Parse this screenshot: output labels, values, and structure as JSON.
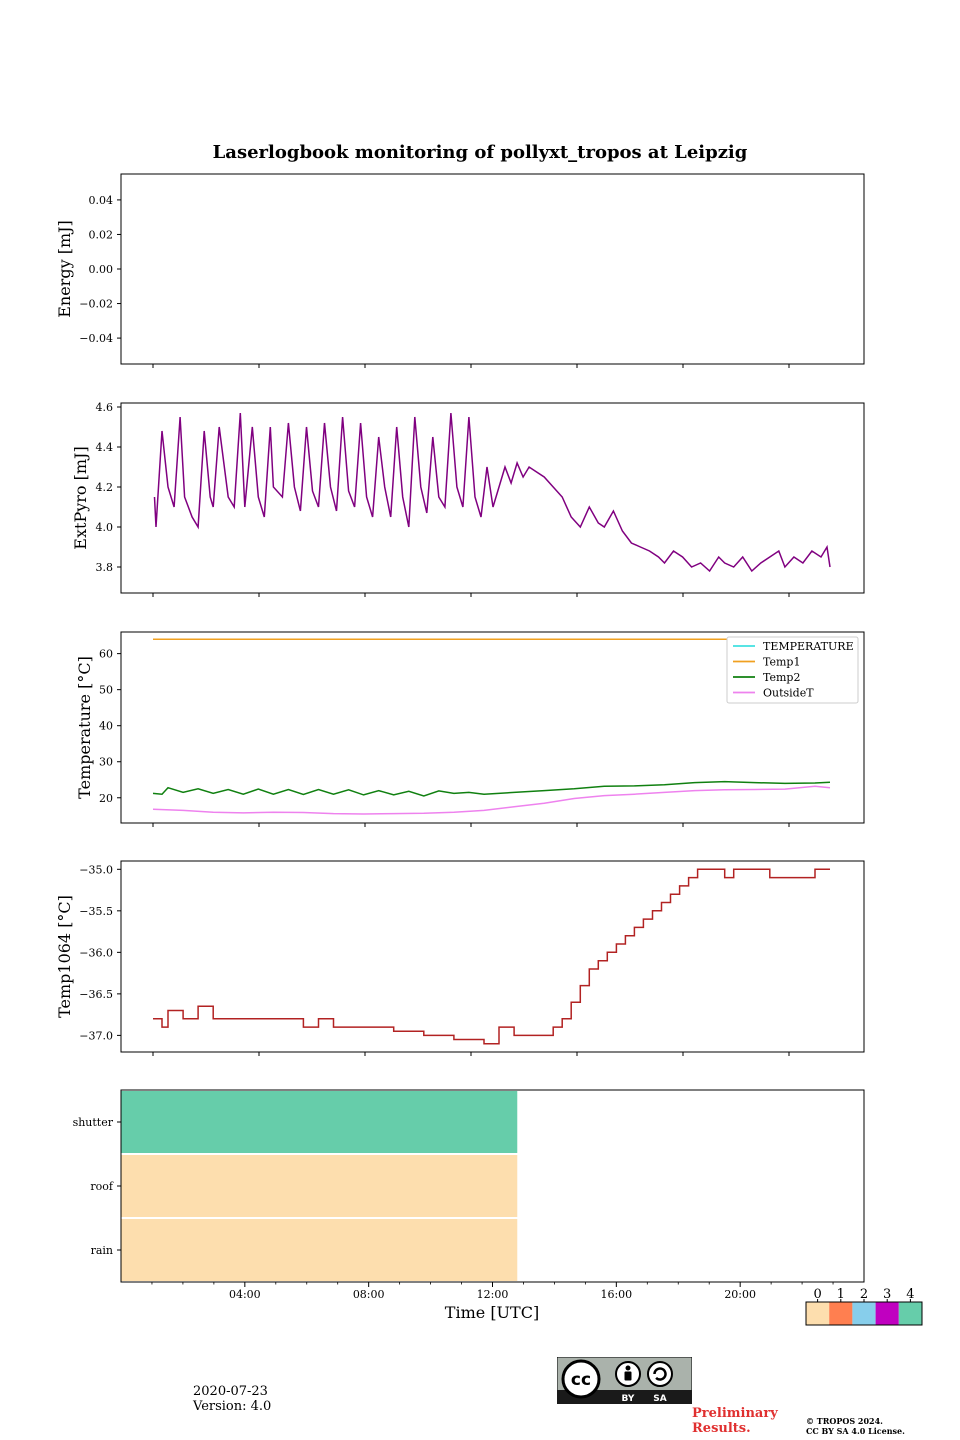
{
  "figure": {
    "title": "Laserlogbook monitoring of pollyxt_tropos at Leipzig",
    "x_label": "Time [UTC]",
    "x_ticks": [
      "04:00",
      "08:00",
      "12:00",
      "16:00",
      "20:00"
    ],
    "x_range_hours": [
      0,
      24
    ]
  },
  "chart_data": [
    {
      "id": "energy",
      "type": "line",
      "ylabel": "Energy [mJ]",
      "ylim": [
        -0.055,
        0.055
      ],
      "yticks": [
        0.04,
        0.02,
        0.0,
        -0.02,
        -0.04
      ],
      "ytick_labels": [
        "0.04",
        "0.02",
        "0.00",
        "−0.02",
        "−0.04"
      ],
      "series": []
    },
    {
      "id": "extpyro",
      "type": "line",
      "ylabel": "ExtPyro [mJ]",
      "ylim": [
        3.67,
        4.62
      ],
      "yticks": [
        3.8,
        4.0,
        4.2,
        4.4,
        4.6
      ],
      "ytick_labels": [
        "3.8",
        "4.0",
        "4.2",
        "4.4",
        "4.6"
      ],
      "series": [
        {
          "name": "ExtPyro",
          "color": "#800080",
          "description": "sawtooth 4.05-4.55 mJ until ~13:00, ~4.25 until 16:00, decreasing to ~3.8 by 23:30",
          "x": [
            1.05,
            1.1,
            1.3,
            1.5,
            1.7,
            1.9,
            2.05,
            2.3,
            2.5,
            2.7,
            2.9,
            3.0,
            3.2,
            3.5,
            3.7,
            3.9,
            4.05,
            4.3,
            4.5,
            4.7,
            4.9,
            5.0,
            5.3,
            5.5,
            5.7,
            5.9,
            6.1,
            6.3,
            6.5,
            6.7,
            6.9,
            7.1,
            7.3,
            7.5,
            7.7,
            7.9,
            8.1,
            8.3,
            8.5,
            8.7,
            8.9,
            9.1,
            9.3,
            9.5,
            9.7,
            9.9,
            10.1,
            10.3,
            10.5,
            10.7,
            10.9,
            11.1,
            11.3,
            11.5,
            11.7,
            11.9,
            12.1,
            12.3,
            12.5,
            12.7,
            12.9,
            13.1,
            13.3,
            13.5,
            13.7,
            14.0,
            14.3,
            14.6,
            14.9,
            15.2,
            15.5,
            15.8,
            16.0,
            16.3,
            16.6,
            16.9,
            17.2,
            17.5,
            17.8,
            18.0,
            18.3,
            18.6,
            18.9,
            19.2,
            19.5,
            19.8,
            20.0,
            20.3,
            20.6,
            20.9,
            21.2,
            21.5,
            21.8,
            22.0,
            22.3,
            22.6,
            22.9,
            23.2,
            23.4,
            23.5
          ],
          "y": [
            4.15,
            4.0,
            4.48,
            4.2,
            4.1,
            4.55,
            4.15,
            4.05,
            4.0,
            4.48,
            4.15,
            4.1,
            4.5,
            4.15,
            4.1,
            4.57,
            4.1,
            4.5,
            4.15,
            4.05,
            4.5,
            4.2,
            4.15,
            4.52,
            4.2,
            4.08,
            4.5,
            4.18,
            4.1,
            4.52,
            4.2,
            4.08,
            4.55,
            4.18,
            4.1,
            4.52,
            4.15,
            4.05,
            4.45,
            4.2,
            4.05,
            4.5,
            4.15,
            4.0,
            4.55,
            4.2,
            4.07,
            4.45,
            4.15,
            4.1,
            4.57,
            4.2,
            4.1,
            4.55,
            4.15,
            4.05,
            4.3,
            4.1,
            4.2,
            4.3,
            4.22,
            4.32,
            4.25,
            4.3,
            4.28,
            4.25,
            4.2,
            4.15,
            4.05,
            4.0,
            4.1,
            4.02,
            4.0,
            4.08,
            3.98,
            3.92,
            3.9,
            3.88,
            3.85,
            3.82,
            3.88,
            3.85,
            3.8,
            3.82,
            3.78,
            3.85,
            3.82,
            3.8,
            3.85,
            3.78,
            3.82,
            3.85,
            3.88,
            3.8,
            3.85,
            3.82,
            3.88,
            3.85,
            3.9,
            3.8
          ]
        }
      ]
    },
    {
      "id": "temperature",
      "type": "line",
      "ylabel": "Temperature [°C]",
      "ylim": [
        13,
        66
      ],
      "yticks": [
        20,
        30,
        40,
        50,
        60
      ],
      "ytick_labels": [
        "20",
        "30",
        "40",
        "50",
        "60"
      ],
      "legend_location": "top-right",
      "series": [
        {
          "name": "TEMPERATURE",
          "color": "#40e0e0",
          "x": [],
          "y": []
        },
        {
          "name": "Temp1",
          "color": "#f0a020",
          "x": [
            1.0,
            23.5
          ],
          "y": [
            64.0,
            64.0
          ]
        },
        {
          "name": "Temp2",
          "color": "#108010",
          "x": [
            1.0,
            1.3,
            1.5,
            2.0,
            2.5,
            3.0,
            3.5,
            4.0,
            4.5,
            5.0,
            5.5,
            6.0,
            6.5,
            7.0,
            7.5,
            8.0,
            8.5,
            9.0,
            9.5,
            10.0,
            10.5,
            11.0,
            11.5,
            12.0,
            13.0,
            14.0,
            15.0,
            16.0,
            17.0,
            18.0,
            19.0,
            20.0,
            21.0,
            22.0,
            23.0,
            23.5
          ],
          "y": [
            21.2,
            21.0,
            22.8,
            21.5,
            22.5,
            21.2,
            22.3,
            21.0,
            22.4,
            21.0,
            22.3,
            20.9,
            22.3,
            21.0,
            22.2,
            20.8,
            22.0,
            20.8,
            21.8,
            20.5,
            21.9,
            21.2,
            21.5,
            21.0,
            21.5,
            22.0,
            22.5,
            23.2,
            23.3,
            23.6,
            24.2,
            24.5,
            24.2,
            24.0,
            24.1,
            24.3
          ]
        },
        {
          "name": "OutsideT",
          "color": "#ee82ee",
          "x": [
            1.0,
            2.0,
            3.0,
            4.0,
            5.0,
            6.0,
            7.0,
            8.0,
            9.0,
            10.0,
            11.0,
            12.0,
            13.0,
            14.0,
            15.0,
            16.0,
            17.0,
            18.0,
            19.0,
            20.0,
            21.0,
            22.0,
            23.0,
            23.5
          ],
          "y": [
            16.8,
            16.5,
            16.0,
            15.8,
            16.0,
            15.9,
            15.6,
            15.5,
            15.6,
            15.7,
            16.0,
            16.5,
            17.5,
            18.5,
            19.8,
            20.6,
            21.0,
            21.5,
            22.0,
            22.2,
            22.3,
            22.4,
            23.2,
            22.8
          ]
        }
      ]
    },
    {
      "id": "temp1064",
      "type": "line",
      "ylabel": "Temp1064 [°C]",
      "ylim": [
        -37.2,
        -34.9
      ],
      "yticks": [
        -35.0,
        -35.5,
        -36.0,
        -36.5,
        -37.0
      ],
      "ytick_labels": [
        "−35.0",
        "−35.5",
        "−36.0",
        "−36.5",
        "−37.0"
      ],
      "series": [
        {
          "name": "Temp1064",
          "color": "#b22222",
          "step": true,
          "x": [
            1.0,
            1.3,
            1.5,
            2.0,
            2.5,
            3.0,
            4.0,
            5.0,
            6.0,
            6.5,
            7.0,
            8.0,
            9.0,
            10.0,
            11.0,
            12.0,
            12.5,
            13.0,
            14.0,
            14.3,
            14.6,
            14.9,
            15.2,
            15.5,
            15.8,
            16.1,
            16.4,
            16.7,
            17.0,
            17.3,
            17.6,
            17.9,
            18.2,
            18.5,
            18.8,
            19.1,
            19.4,
            19.7,
            20.0,
            20.3,
            21.0,
            21.5,
            22.0,
            23.0,
            23.5
          ],
          "y": [
            -36.8,
            -36.9,
            -36.7,
            -36.8,
            -36.65,
            -36.8,
            -36.8,
            -36.8,
            -36.9,
            -36.8,
            -36.9,
            -36.9,
            -36.95,
            -37.0,
            -37.05,
            -37.1,
            -36.9,
            -37.0,
            -37.0,
            -36.9,
            -36.8,
            -36.6,
            -36.4,
            -36.2,
            -36.1,
            -36.0,
            -35.9,
            -35.8,
            -35.7,
            -35.6,
            -35.5,
            -35.4,
            -35.3,
            -35.2,
            -35.1,
            -35.0,
            -35.0,
            -35.0,
            -35.1,
            -35.0,
            -35.0,
            -35.1,
            -35.1,
            -35.0,
            -35.0
          ]
        }
      ]
    },
    {
      "id": "status",
      "type": "heatmap",
      "rows": [
        "shutter",
        "roof",
        "rain"
      ],
      "colorbar_ticks": [
        "0",
        "1",
        "2",
        "3",
        "4"
      ],
      "colorbar_colors": [
        "#fddeae",
        "#ff7f50",
        "#87ceeb",
        "#c000c0",
        "#66cdaa"
      ],
      "segments": [
        {
          "row": "shutter",
          "start": 0.0,
          "end": 12.8,
          "value": 4
        },
        {
          "row": "roof",
          "start": 0.0,
          "end": 12.8,
          "value": 0
        },
        {
          "row": "rain",
          "start": 0.0,
          "end": 12.8,
          "value": 0
        }
      ]
    }
  ],
  "footer": {
    "date": "2020-07-23",
    "version": "Version: 4.0",
    "preliminary_line1": "Preliminary",
    "preliminary_line2": "Results.",
    "copyright_line1": "© TROPOS 2024.",
    "copyright_line2": "CC BY SA 4.0 License.",
    "cc_by": "BY",
    "cc_sa": "SA",
    "cc_logo_text": "cc"
  }
}
